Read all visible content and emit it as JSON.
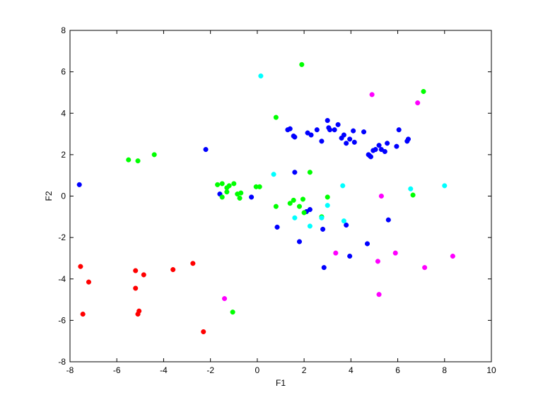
{
  "chart_data": {
    "type": "scatter",
    "xlabel": "F1",
    "ylabel": "F2",
    "xlim": [
      -8,
      10
    ],
    "ylim": [
      -8,
      8
    ],
    "xticks": [
      "-8",
      "-6",
      "-4",
      "-2",
      "0",
      "2",
      "4",
      "6",
      "8",
      "10"
    ],
    "yticks": [
      "-8",
      "-6",
      "-4",
      "-2",
      "0",
      "2",
      "4",
      "6",
      "8"
    ],
    "grid": false,
    "series": [
      {
        "color": "#0000ff",
        "points": [
          [
            -7.6,
            0.55
          ],
          [
            -2.2,
            2.25
          ],
          [
            -1.6,
            0.1
          ],
          [
            -0.25,
            -0.05
          ],
          [
            0.85,
            -1.5
          ],
          [
            1.3,
            3.2
          ],
          [
            1.4,
            3.25
          ],
          [
            1.55,
            2.9
          ],
          [
            1.6,
            2.85
          ],
          [
            1.6,
            1.15
          ],
          [
            1.8,
            -2.2
          ],
          [
            2.1,
            -0.75
          ],
          [
            2.15,
            3.05
          ],
          [
            2.25,
            -0.65
          ],
          [
            2.3,
            2.95
          ],
          [
            2.55,
            3.2
          ],
          [
            2.75,
            2.65
          ],
          [
            2.8,
            -1.6
          ],
          [
            2.85,
            -3.45
          ],
          [
            3.0,
            3.65
          ],
          [
            3.05,
            3.3
          ],
          [
            3.1,
            3.2
          ],
          [
            3.3,
            3.2
          ],
          [
            3.45,
            3.45
          ],
          [
            3.6,
            2.8
          ],
          [
            3.7,
            2.95
          ],
          [
            3.8,
            2.55
          ],
          [
            3.8,
            -1.4
          ],
          [
            3.95,
            2.75
          ],
          [
            3.95,
            -2.9
          ],
          [
            4.1,
            3.15
          ],
          [
            4.15,
            2.6
          ],
          [
            4.55,
            3.1
          ],
          [
            4.7,
            -2.3
          ],
          [
            4.75,
            2.0
          ],
          [
            4.8,
            1.95
          ],
          [
            4.85,
            1.9
          ],
          [
            4.95,
            2.2
          ],
          [
            5.05,
            2.25
          ],
          [
            5.2,
            2.45
          ],
          [
            5.3,
            2.25
          ],
          [
            5.45,
            2.15
          ],
          [
            5.55,
            2.55
          ],
          [
            5.6,
            -1.15
          ],
          [
            5.95,
            2.4
          ],
          [
            6.05,
            3.2
          ],
          [
            6.4,
            2.65
          ],
          [
            6.45,
            2.75
          ]
        ]
      },
      {
        "color": "#00ff00",
        "points": [
          [
            -5.5,
            1.75
          ],
          [
            -5.1,
            1.7
          ],
          [
            -4.4,
            2.0
          ],
          [
            -1.7,
            0.55
          ],
          [
            -1.5,
            0.6
          ],
          [
            -1.5,
            -0.05
          ],
          [
            -1.3,
            0.4
          ],
          [
            -1.3,
            0.2
          ],
          [
            -1.2,
            0.5
          ],
          [
            -1.0,
            0.6
          ],
          [
            -0.85,
            0.1
          ],
          [
            -0.75,
            -0.1
          ],
          [
            -0.7,
            0.15
          ],
          [
            -0.05,
            0.45
          ],
          [
            0.1,
            0.45
          ],
          [
            0.8,
            3.8
          ],
          [
            0.8,
            -0.5
          ],
          [
            1.4,
            -0.35
          ],
          [
            1.55,
            -0.2
          ],
          [
            1.8,
            -0.5
          ],
          [
            1.9,
            6.35
          ],
          [
            1.95,
            -0.15
          ],
          [
            2.0,
            -0.8
          ],
          [
            2.25,
            1.15
          ],
          [
            2.75,
            -1.0
          ],
          [
            3.0,
            -0.05
          ],
          [
            6.65,
            0.05
          ],
          [
            7.1,
            5.05
          ],
          [
            -1.05,
            -5.6
          ]
        ]
      },
      {
        "color": "#00ffff",
        "points": [
          [
            0.15,
            5.8
          ],
          [
            0.7,
            1.05
          ],
          [
            1.6,
            -1.05
          ],
          [
            2.25,
            -1.45
          ],
          [
            2.75,
            -1.05
          ],
          [
            3.0,
            -0.45
          ],
          [
            3.65,
            0.5
          ],
          [
            3.7,
            -1.2
          ],
          [
            6.55,
            0.35
          ],
          [
            8.0,
            0.5
          ]
        ]
      },
      {
        "color": "#ff00ff",
        "points": [
          [
            4.9,
            4.9
          ],
          [
            6.85,
            4.5
          ],
          [
            5.3,
            0.0
          ],
          [
            3.35,
            -2.75
          ],
          [
            5.9,
            -2.75
          ],
          [
            5.15,
            -3.15
          ],
          [
            7.15,
            -3.45
          ],
          [
            8.35,
            -2.9
          ],
          [
            5.2,
            -4.75
          ],
          [
            -1.4,
            -4.95
          ]
        ]
      },
      {
        "color": "#ff0000",
        "points": [
          [
            -7.55,
            -3.4
          ],
          [
            -7.2,
            -4.15
          ],
          [
            -7.45,
            -5.7
          ],
          [
            -5.2,
            -3.6
          ],
          [
            -4.85,
            -3.8
          ],
          [
            -5.2,
            -4.45
          ],
          [
            -5.05,
            -5.55
          ],
          [
            -5.1,
            -5.7
          ],
          [
            -3.6,
            -3.55
          ],
          [
            -2.75,
            -3.25
          ],
          [
            -2.3,
            -6.55
          ]
        ]
      }
    ]
  }
}
